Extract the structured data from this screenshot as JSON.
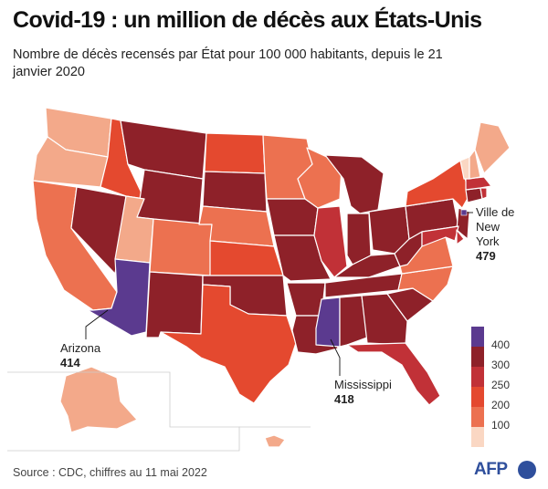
{
  "title": "Covid-19 : un million de décès aux États-Unis",
  "subtitle": "Nombre de décès recensés par État pour 100 000 habitants, depuis le 21 janvier 2020",
  "colors": {
    "c400": "#5b3a8f",
    "c350": "#8e2129",
    "c300": "#c13137",
    "c250": "#e4492f",
    "c200": "#ec7150",
    "c150": "#f3a98a",
    "c100": "#fad7c3"
  },
  "legend": {
    "ticks": [
      "400",
      "300",
      "250",
      "200",
      "100"
    ]
  },
  "callouts": {
    "nyc": {
      "name": "Ville de New York",
      "value": "479"
    },
    "arizona": {
      "name": "Arizona",
      "value": "414"
    },
    "mississippi": {
      "name": "Mississippi",
      "value": "418"
    }
  },
  "source": "Source : CDC, chiffres au 11 mai 2022",
  "logo": "AFP"
}
